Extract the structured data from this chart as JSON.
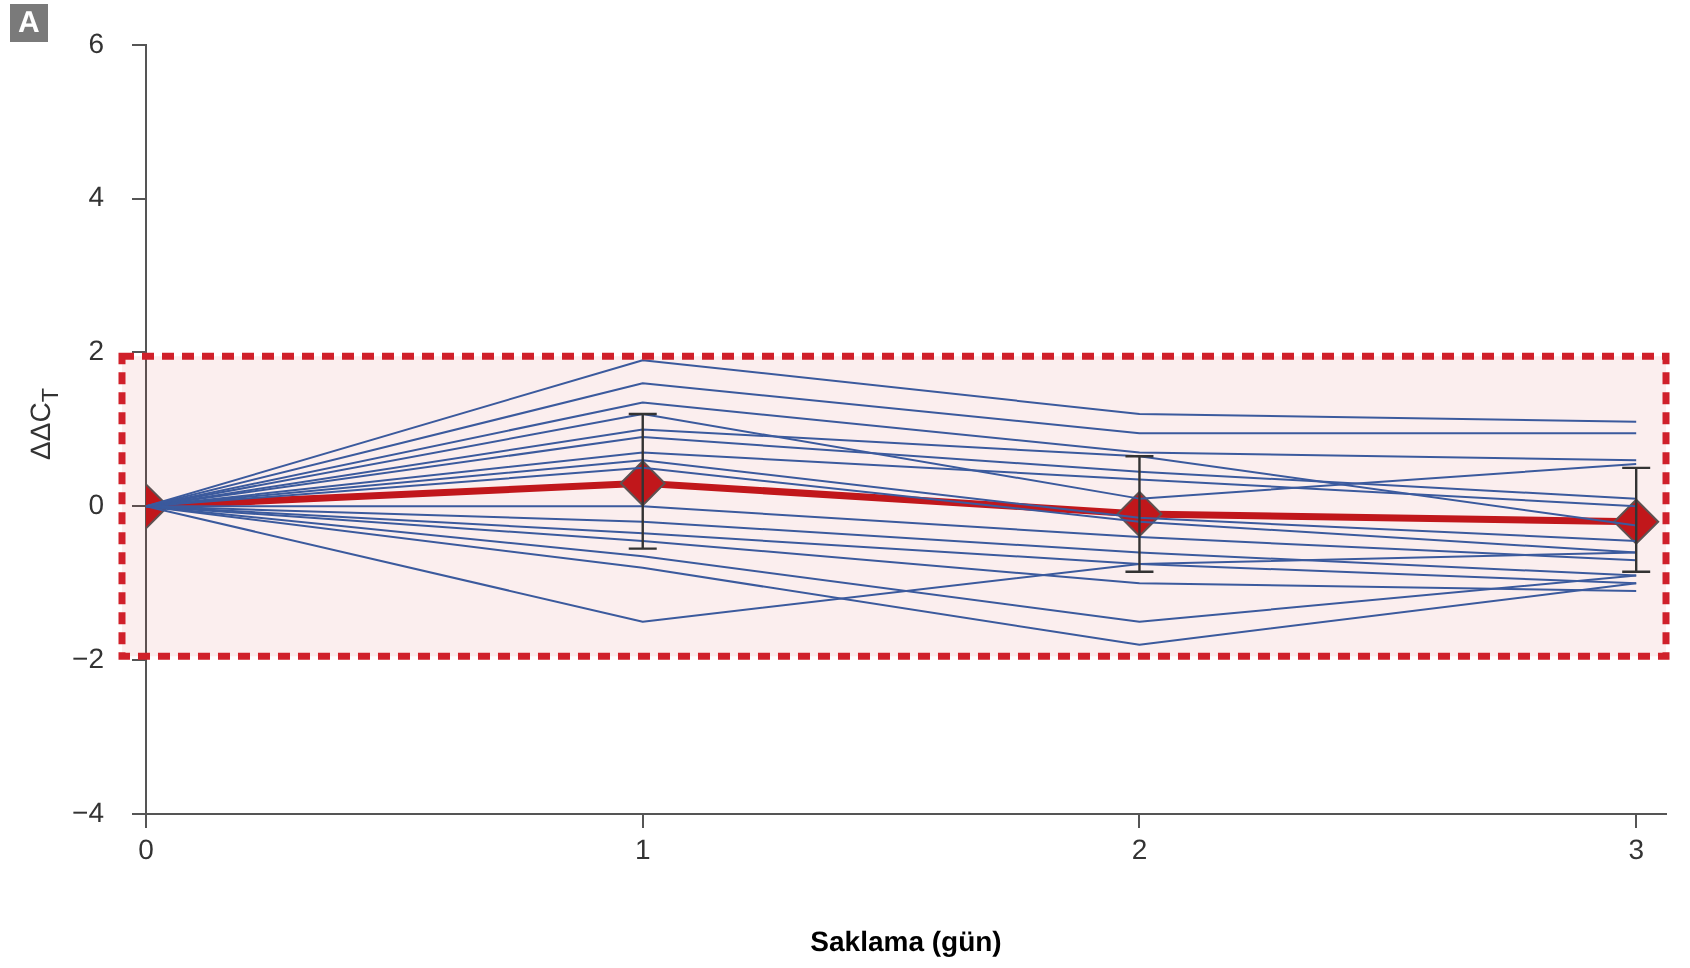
{
  "chart_data": {
    "type": "line",
    "xlabel": "Saklama (gün)",
    "ylabel": "ΔΔC$_{T}$",
    "annotations": [
      "A"
    ],
    "x": [
      0,
      1,
      2,
      3
    ],
    "xlim": [
      0,
      3.06
    ],
    "xticks": [
      0,
      1,
      2,
      3
    ],
    "ylim": [
      -4,
      6
    ],
    "yticks": [
      -4,
      -2,
      0,
      2,
      4,
      6
    ],
    "grid": false,
    "legend": false,
    "series": [
      {
        "color": "#2f5fa8",
        "marker": "none",
        "values": [
          0,
          1.9,
          1.2,
          1.1
        ]
      },
      {
        "color": "#2f5fa8",
        "marker": "none",
        "values": [
          0,
          1.6,
          0.95,
          0.95
        ]
      },
      {
        "color": "#2f5fa8",
        "marker": "none",
        "values": [
          0,
          1.35,
          0.7,
          0.6
        ]
      },
      {
        "color": "#2f5fa8",
        "marker": "none",
        "values": [
          0,
          1.2,
          0.1,
          0.55
        ]
      },
      {
        "color": "#2f5fa8",
        "marker": "none",
        "values": [
          0,
          1.0,
          0.65,
          -0.25
        ]
      },
      {
        "color": "#2f5fa8",
        "marker": "none",
        "values": [
          0,
          0.9,
          0.45,
          0.1
        ]
      },
      {
        "color": "#2f5fa8",
        "marker": "none",
        "values": [
          0,
          0.7,
          0.35,
          0.0
        ]
      },
      {
        "color": "#2f5fa8",
        "marker": "none",
        "values": [
          0,
          0.6,
          -0.15,
          -0.45
        ]
      },
      {
        "color": "#2f5fa8",
        "marker": "none",
        "values": [
          0,
          0.5,
          -0.2,
          -0.6
        ]
      },
      {
        "color": "#2f5fa8",
        "marker": "none",
        "values": [
          0,
          0.0,
          -0.4,
          -0.7
        ]
      },
      {
        "color": "#2f5fa8",
        "marker": "none",
        "values": [
          0,
          -0.2,
          -0.6,
          -0.9
        ]
      },
      {
        "color": "#2f5fa8",
        "marker": "none",
        "values": [
          0,
          -0.35,
          -0.75,
          -1.0
        ]
      },
      {
        "color": "#2f5fa8",
        "marker": "none",
        "values": [
          0,
          -0.45,
          -1.0,
          -1.1
        ]
      },
      {
        "color": "#2f5fa8",
        "marker": "none",
        "values": [
          0,
          -0.65,
          -1.5,
          -0.9
        ]
      },
      {
        "color": "#2f5fa8",
        "marker": "none",
        "values": [
          0,
          -0.8,
          -1.8,
          -1.0
        ]
      },
      {
        "color": "#2f5fa8",
        "marker": "none",
        "values": [
          0,
          -1.5,
          -0.75,
          -0.6
        ]
      },
      {
        "color": "#c0161b",
        "marker": "diamond",
        "values": [
          0,
          0.3,
          -0.1,
          -0.2
        ],
        "errors": [
          null,
          [
            -0.55,
            1.2
          ],
          [
            -0.85,
            0.65
          ],
          [
            -0.85,
            0.5
          ]
        ]
      }
    ],
    "bands": [
      {
        "axis": "y",
        "from": -1.95,
        "to": 1.95,
        "color": "#d0202a"
      }
    ]
  }
}
